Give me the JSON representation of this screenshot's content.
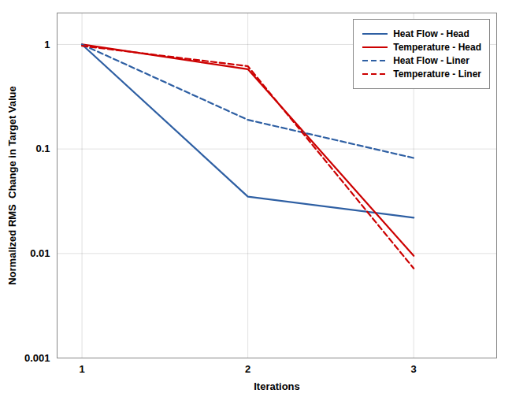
{
  "chart_data": {
    "type": "line",
    "x": [
      1,
      2,
      3
    ],
    "series": [
      {
        "name": "Heat Flow - Head",
        "color": "#2e5fa3",
        "line_style": "solid",
        "values": [
          1.0,
          0.035,
          0.022
        ]
      },
      {
        "name": "Temperature - Head",
        "color": "#cc0000",
        "line_style": "solid",
        "values": [
          1.0,
          0.58,
          0.0095
        ]
      },
      {
        "name": "Heat Flow - Liner",
        "color": "#2e5fa3",
        "line_style": "dashed",
        "values": [
          1.0,
          0.19,
          0.082
        ]
      },
      {
        "name": "Temperature - Liner",
        "color": "#cc0000",
        "line_style": "dashed",
        "values": [
          0.97,
          0.62,
          0.0072
        ]
      }
    ],
    "xlabel": "Iterations",
    "ylabel": "Normalized RMS  Change in Target Value",
    "xlim": [
      0.85,
      3.5
    ],
    "ylim": [
      0.001,
      2.0
    ],
    "xticks": [
      1,
      2,
      3
    ],
    "yticks": [
      0.001,
      0.01,
      0.1,
      1
    ],
    "log": "y",
    "grid": true,
    "legend": "upper right"
  }
}
